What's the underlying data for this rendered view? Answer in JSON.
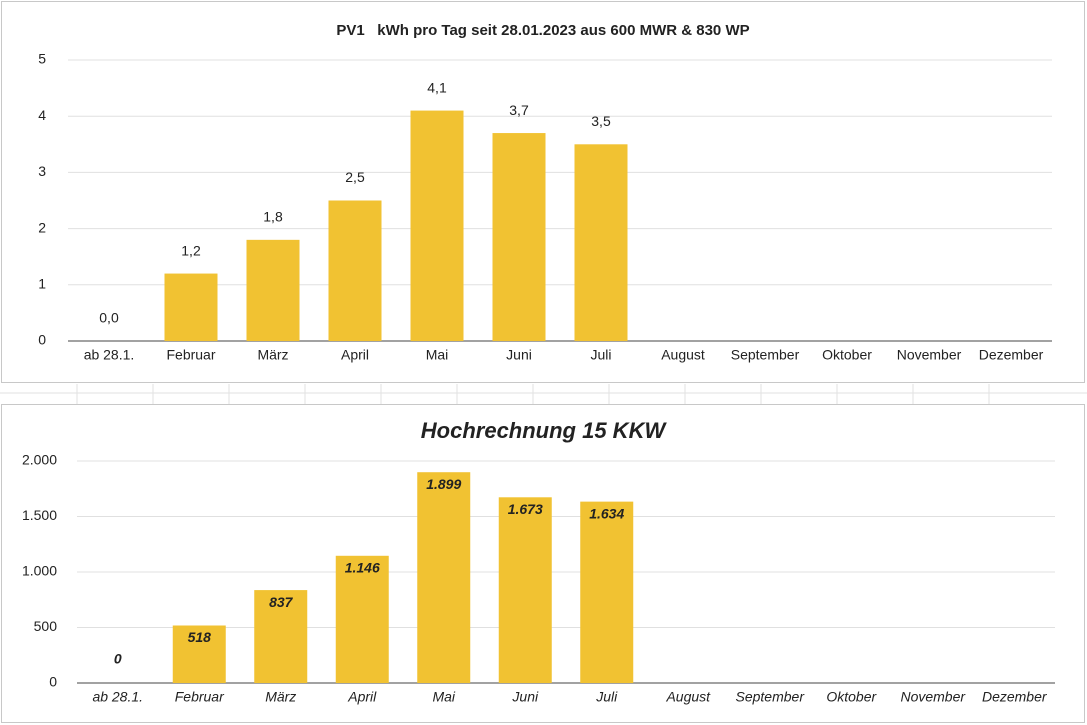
{
  "chart_data": [
    {
      "type": "bar",
      "title": "PV1   kWh pro Tag seit 28.01.2023 aus 600 MWR & 830 WP",
      "categories": [
        "ab 28.1.",
        "Februar",
        "März",
        "April",
        "Mai",
        "Juni",
        "Juli",
        "August",
        "September",
        "Oktober",
        "November",
        "Dezember"
      ],
      "values": [
        0,
        1.2,
        1.8,
        2.5,
        4.1,
        3.7,
        3.5,
        null,
        null,
        null,
        null,
        null
      ],
      "value_labels": [
        "0,0",
        "1,2",
        "1,8",
        "2,5",
        "4,1",
        "3,7",
        "3,5",
        null,
        null,
        null,
        null,
        null
      ],
      "color": "#f1c232",
      "ylim": [
        0,
        5
      ],
      "yticks": [
        0,
        1,
        2,
        3,
        4,
        5
      ],
      "grid": true
    },
    {
      "type": "bar",
      "title": "Hochrechnung 15 KKW",
      "categories": [
        "ab 28.1.",
        "Februar",
        "März",
        "April",
        "Mai",
        "Juni",
        "Juli",
        "August",
        "September",
        "Oktober",
        "November",
        "Dezember"
      ],
      "values": [
        0,
        518,
        837,
        1146,
        1899,
        1673,
        1634,
        null,
        null,
        null,
        null,
        null
      ],
      "value_labels": [
        "0",
        "518",
        "837",
        "1.146",
        "1.899",
        "1.673",
        "1.634",
        null,
        null,
        null,
        null,
        null
      ],
      "color": "#f1c232",
      "ylim": [
        0,
        2000
      ],
      "yticks": [
        0,
        500,
        {
          "value": 1000,
          "label": "1.000"
        },
        {
          "value": 1500,
          "label": "1.500"
        },
        {
          "value": 2000,
          "label": "2.000"
        }
      ],
      "grid": true
    }
  ]
}
